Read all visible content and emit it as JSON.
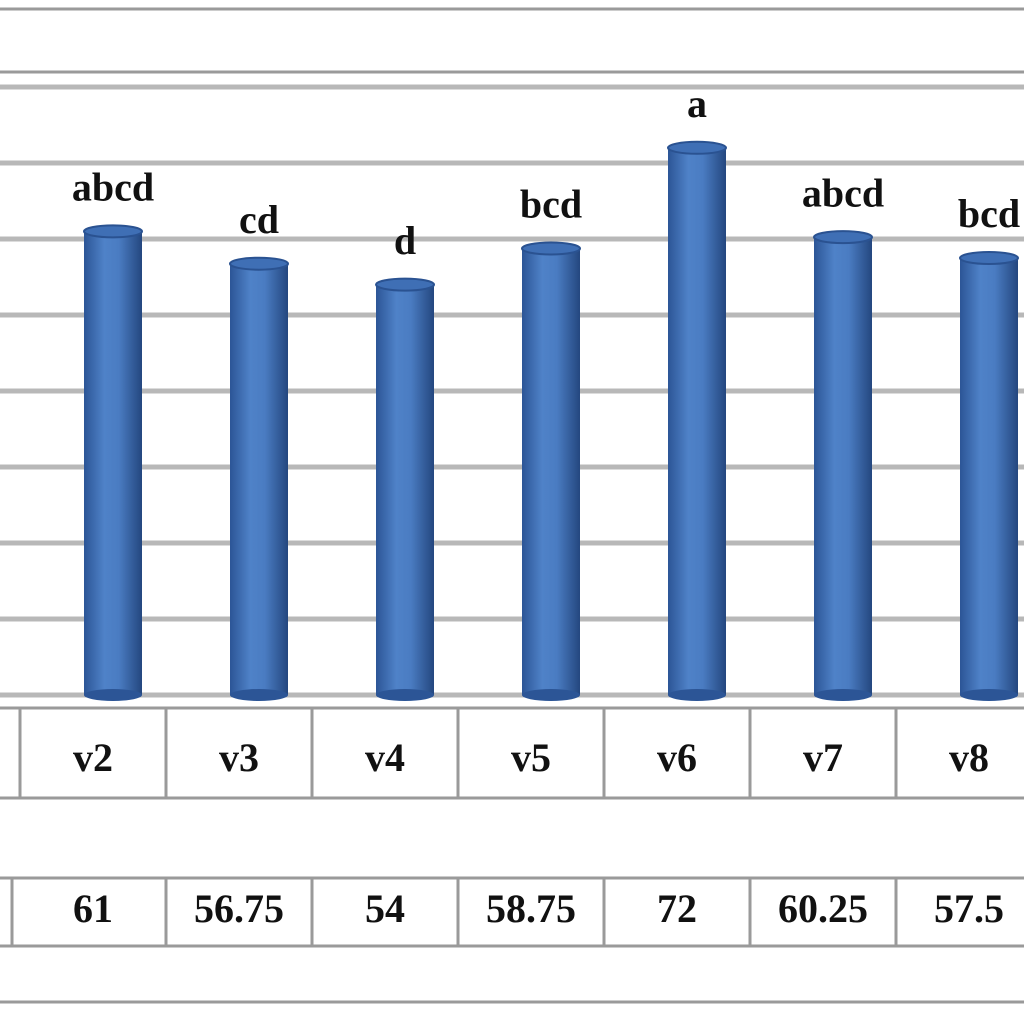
{
  "chart_data": {
    "type": "bar",
    "categories": [
      "v2",
      "v3",
      "v4",
      "v5",
      "v6",
      "v7",
      "v8"
    ],
    "values": [
      61,
      56.75,
      54,
      58.75,
      72,
      60.25,
      57.5
    ],
    "annotations": [
      "abcd",
      "cd",
      "d",
      "bcd",
      "a",
      "abcd",
      "bcd"
    ],
    "color": "#3f6fb5",
    "ylim": [
      0,
      80
    ],
    "yticks": [
      0,
      10,
      20,
      30,
      40,
      50,
      60,
      70,
      80
    ],
    "grid": true
  }
}
